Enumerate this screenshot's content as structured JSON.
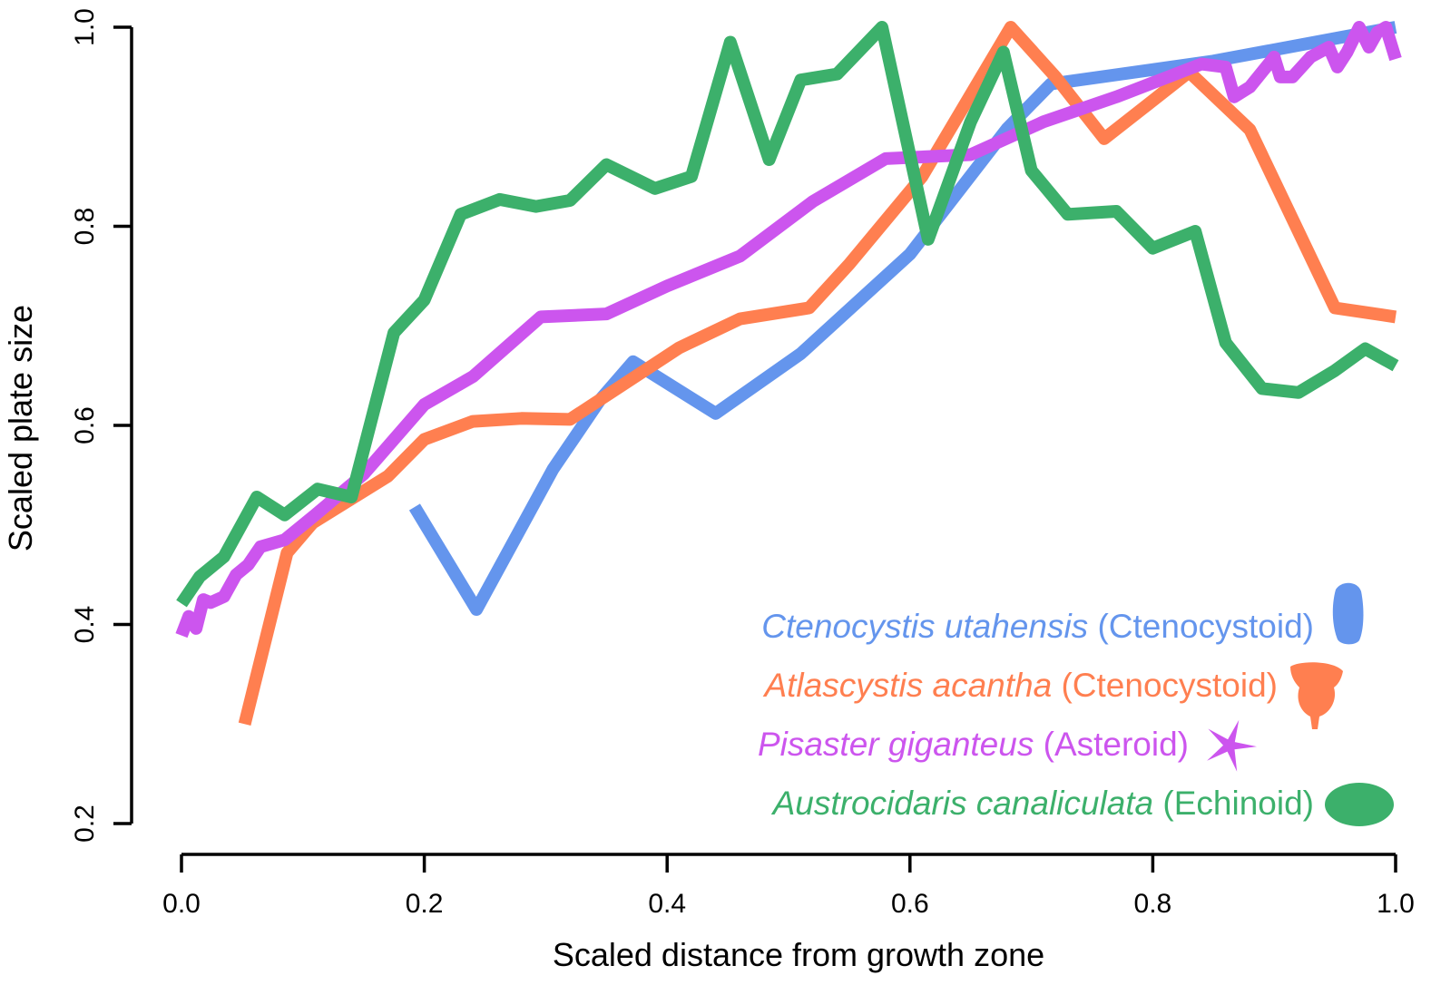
{
  "chart_data": {
    "type": "line",
    "xlabel": "Scaled distance from growth zone",
    "ylabel": "Scaled plate size",
    "xlim": [
      0.0,
      1.0
    ],
    "ylim": [
      0.2,
      1.0
    ],
    "x_ticks": [
      "0.0",
      "0.2",
      "0.4",
      "0.6",
      "0.8",
      "1.0"
    ],
    "y_ticks": [
      "0.2",
      "0.4",
      "0.6",
      "0.8",
      "1.0"
    ],
    "legend_position": "bottom-right",
    "series": [
      {
        "species": "Ctenocystis utahensis",
        "group": "(Ctenocystoid)",
        "color": "#6495ED",
        "icon": "ctenocystis-silhouette",
        "points": [
          [
            0.192,
            0.518
          ],
          [
            0.243,
            0.415
          ],
          [
            0.306,
            0.556
          ],
          [
            0.345,
            0.626
          ],
          [
            0.372,
            0.664
          ],
          [
            0.44,
            0.612
          ],
          [
            0.51,
            0.672
          ],
          [
            0.6,
            0.772
          ],
          [
            0.68,
            0.898
          ],
          [
            0.716,
            0.943
          ],
          [
            0.85,
            0.966
          ],
          [
            1.0,
            1.0
          ]
        ]
      },
      {
        "species": "Atlascystis acantha",
        "group": "(Ctenocystoid)",
        "color": "#FF7F50",
        "icon": "atlascystis-silhouette",
        "points": [
          [
            0.052,
            0.3
          ],
          [
            0.087,
            0.472
          ],
          [
            0.108,
            0.502
          ],
          [
            0.17,
            0.549
          ],
          [
            0.2,
            0.586
          ],
          [
            0.24,
            0.604
          ],
          [
            0.28,
            0.607
          ],
          [
            0.32,
            0.606
          ],
          [
            0.36,
            0.638
          ],
          [
            0.41,
            0.678
          ],
          [
            0.46,
            0.707
          ],
          [
            0.517,
            0.718
          ],
          [
            0.55,
            0.762
          ],
          [
            0.61,
            0.85
          ],
          [
            0.683,
            1.0
          ],
          [
            0.72,
            0.95
          ],
          [
            0.76,
            0.888
          ],
          [
            0.83,
            0.955
          ],
          [
            0.88,
            0.897
          ],
          [
            0.95,
            0.718
          ],
          [
            1.0,
            0.709
          ]
        ]
      },
      {
        "species": "Pisaster giganteus",
        "group": "(Asteroid)",
        "color": "#CC55EE",
        "icon": "sea-star-icon",
        "points": [
          [
            0.0,
            0.389
          ],
          [
            0.006,
            0.408
          ],
          [
            0.012,
            0.396
          ],
          [
            0.018,
            0.425
          ],
          [
            0.024,
            0.422
          ],
          [
            0.035,
            0.428
          ],
          [
            0.045,
            0.45
          ],
          [
            0.055,
            0.46
          ],
          [
            0.065,
            0.478
          ],
          [
            0.085,
            0.485
          ],
          [
            0.11,
            0.51
          ],
          [
            0.15,
            0.551
          ],
          [
            0.2,
            0.621
          ],
          [
            0.24,
            0.649
          ],
          [
            0.296,
            0.709
          ],
          [
            0.35,
            0.712
          ],
          [
            0.4,
            0.74
          ],
          [
            0.46,
            0.77
          ],
          [
            0.52,
            0.825
          ],
          [
            0.58,
            0.868
          ],
          [
            0.65,
            0.872
          ],
          [
            0.71,
            0.905
          ],
          [
            0.77,
            0.93
          ],
          [
            0.84,
            0.963
          ],
          [
            0.86,
            0.96
          ],
          [
            0.867,
            0.93
          ],
          [
            0.88,
            0.94
          ],
          [
            0.9,
            0.97
          ],
          [
            0.905,
            0.95
          ],
          [
            0.915,
            0.95
          ],
          [
            0.93,
            0.97
          ],
          [
            0.945,
            0.98
          ],
          [
            0.952,
            0.96
          ],
          [
            0.96,
            0.975
          ],
          [
            0.97,
            1.0
          ],
          [
            0.978,
            0.98
          ],
          [
            0.985,
            0.995
          ],
          [
            0.992,
            1.0
          ],
          [
            1.0,
            0.968
          ]
        ]
      },
      {
        "species": "Austrocidaris canaliculata",
        "group": "(Echinoid)",
        "color": "#3CB06B",
        "icon": "echinoid-silhouette",
        "points": [
          [
            0.0,
            0.421
          ],
          [
            0.015,
            0.448
          ],
          [
            0.035,
            0.468
          ],
          [
            0.062,
            0.528
          ],
          [
            0.085,
            0.51
          ],
          [
            0.112,
            0.536
          ],
          [
            0.14,
            0.528
          ],
          [
            0.175,
            0.693
          ],
          [
            0.2,
            0.726
          ],
          [
            0.23,
            0.812
          ],
          [
            0.262,
            0.827
          ],
          [
            0.292,
            0.82
          ],
          [
            0.32,
            0.826
          ],
          [
            0.35,
            0.862
          ],
          [
            0.39,
            0.838
          ],
          [
            0.42,
            0.85
          ],
          [
            0.452,
            0.985
          ],
          [
            0.484,
            0.867
          ],
          [
            0.51,
            0.947
          ],
          [
            0.54,
            0.953
          ],
          [
            0.577,
            1.0
          ],
          [
            0.615,
            0.787
          ],
          [
            0.65,
            0.905
          ],
          [
            0.677,
            0.975
          ],
          [
            0.7,
            0.856
          ],
          [
            0.73,
            0.812
          ],
          [
            0.77,
            0.815
          ],
          [
            0.8,
            0.778
          ],
          [
            0.835,
            0.795
          ],
          [
            0.86,
            0.683
          ],
          [
            0.89,
            0.637
          ],
          [
            0.92,
            0.633
          ],
          [
            0.95,
            0.655
          ],
          [
            0.975,
            0.677
          ],
          [
            1.0,
            0.66
          ]
        ]
      }
    ]
  }
}
